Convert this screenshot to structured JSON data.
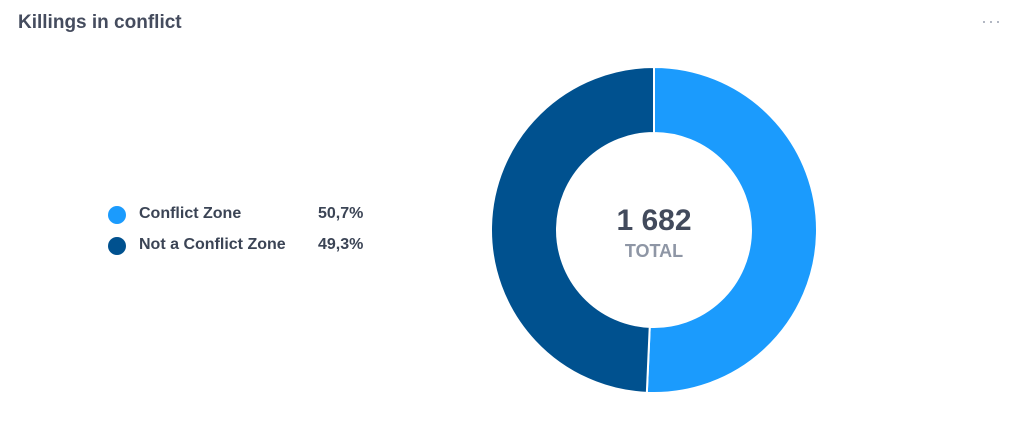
{
  "widget": {
    "title": "Killings in conflict",
    "menu_label": "···"
  },
  "center": {
    "total_value": "1 682",
    "total_label": "TOTAL"
  },
  "chart_data": {
    "type": "pie",
    "variant": "donut",
    "categories": [
      "Conflict Zone",
      "Not a Conflict Zone"
    ],
    "values": [
      50.7,
      49.3
    ],
    "value_labels": [
      "50,7%",
      "49,3%"
    ],
    "colors": [
      "#1b9bfd",
      "#00518f"
    ],
    "total": 1682,
    "legend_position": "left"
  }
}
